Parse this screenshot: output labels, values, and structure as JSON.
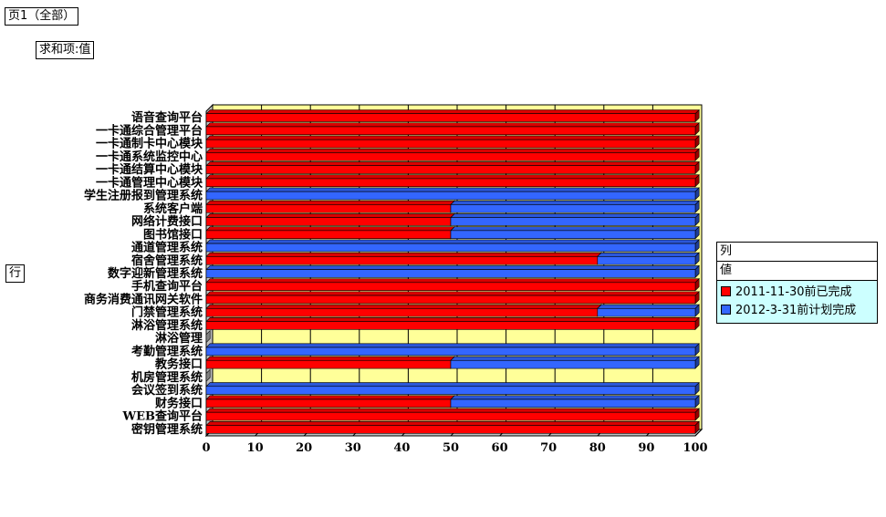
{
  "fields": {
    "page_field": "页1（全部）",
    "sum_field": "求和项:值",
    "row_field": "行"
  },
  "legend": {
    "col_header": "列",
    "value_header": "値",
    "items": [
      {
        "label": "2011-11-30前已完成",
        "color": "#ff0000"
      },
      {
        "label": "2012-3-31前计划完成",
        "color": "#3366ff"
      }
    ]
  },
  "colors": {
    "plot_background": "#ffff99",
    "completed": "#ff0000",
    "planned": "#3366ff"
  },
  "chart_data": {
    "type": "bar",
    "orientation": "horizontal",
    "stacked": true,
    "xlim": [
      0,
      100
    ],
    "xticks": [
      "0",
      "10",
      "20",
      "30",
      "40",
      "50",
      "60",
      "70",
      "80",
      "90",
      "100"
    ],
    "grid": true,
    "legend_position": "right",
    "categories": [
      "语音查询平台",
      "一卡通综合管理平台",
      "一卡通制卡中心模块",
      "一卡通系统监控中心",
      "一卡通结算中心模块",
      "一卡通管理中心模块",
      "学生注册报到管理系统",
      "系统客户端",
      "网络计费接口",
      "图书馆接口",
      "通道管理系统",
      "宿舍管理系统",
      "数字迎新管理系统",
      "手机查询平台",
      "商务消费通讯网关软件",
      "门禁管理系统",
      "淋浴管理系统",
      "淋浴管理",
      "考勤管理系统",
      "教务接口",
      "机房管理系统",
      "会议签到系统",
      "财务接口",
      "WEB查询平台",
      "密钥管理系统"
    ],
    "series": [
      {
        "name": "2011-11-30前已完成",
        "values": [
          100,
          100,
          100,
          100,
          100,
          100,
          0,
          50,
          50,
          50,
          0,
          80,
          0,
          100,
          100,
          80,
          100,
          0,
          0,
          50,
          0,
          0,
          50,
          100,
          100
        ]
      },
      {
        "name": "2012-3-31前计划完成",
        "values": [
          0,
          0,
          0,
          0,
          0,
          0,
          100,
          50,
          50,
          50,
          100,
          20,
          100,
          0,
          0,
          20,
          0,
          0,
          100,
          50,
          0,
          100,
          50,
          0,
          0
        ]
      }
    ]
  }
}
